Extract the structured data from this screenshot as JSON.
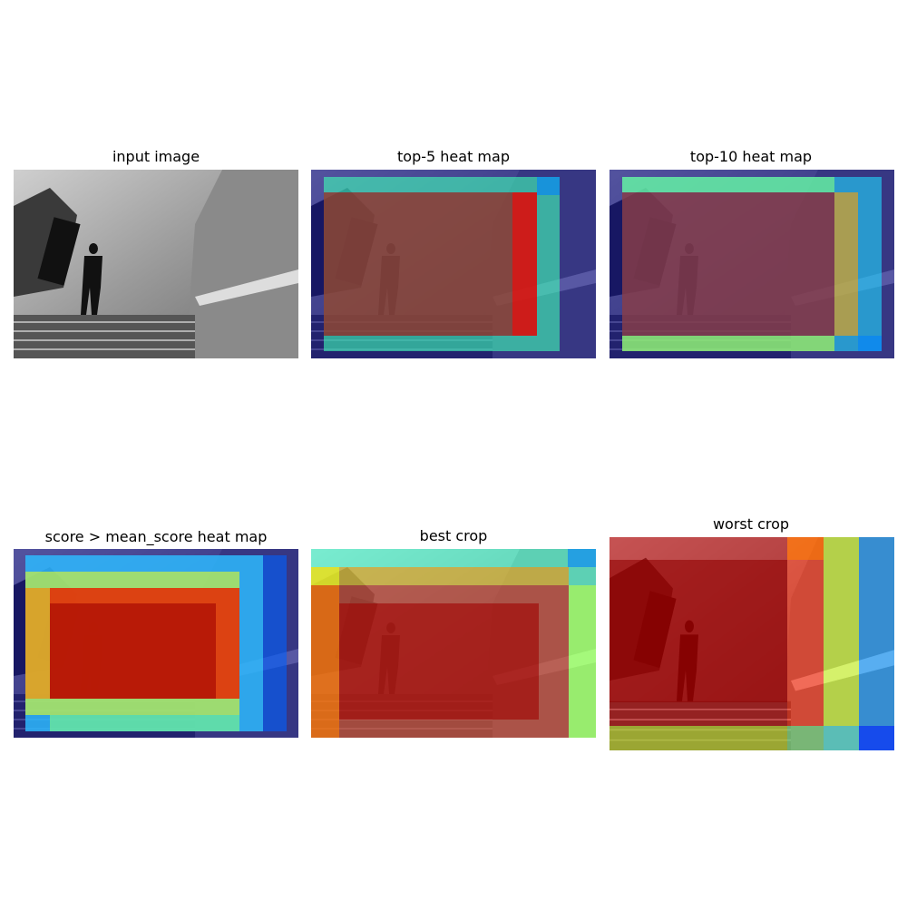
{
  "panels": [
    {
      "title": "input image"
    },
    {
      "title": "top-5 heat map"
    },
    {
      "title": "top-10 heat map"
    },
    {
      "title": "score > mean_score heat map"
    },
    {
      "title": "best crop"
    },
    {
      "title": "worst crop"
    }
  ]
}
